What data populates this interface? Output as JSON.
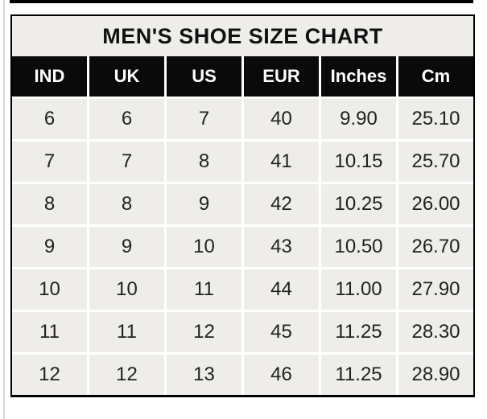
{
  "title": "MEN'S SHOE SIZE CHART",
  "chart_data": {
    "type": "table",
    "title": "MEN'S SHOE SIZE CHART",
    "columns": [
      "IND",
      "UK",
      "US",
      "EUR",
      "Inches",
      "Cm"
    ],
    "rows": [
      [
        "6",
        "6",
        "7",
        "40",
        "9.90",
        "25.10"
      ],
      [
        "7",
        "7",
        "8",
        "41",
        "10.15",
        "25.70"
      ],
      [
        "8",
        "8",
        "9",
        "42",
        "10.25",
        "26.00"
      ],
      [
        "9",
        "9",
        "10",
        "43",
        "10.50",
        "26.70"
      ],
      [
        "10",
        "10",
        "11",
        "44",
        "11.00",
        "27.90"
      ],
      [
        "11",
        "11",
        "12",
        "45",
        "11.25",
        "28.30"
      ],
      [
        "12",
        "12",
        "13",
        "46",
        "11.25",
        "28.90"
      ]
    ],
    "layout": {
      "grid": "white 3px gaps between cells",
      "header_position": "top row"
    }
  },
  "colors": {
    "header_bg": "#0a0a0a",
    "header_text": "#ffffff",
    "cell_bg": "#eeedea",
    "cell_text": "#212121",
    "title_bg": "#eeedea",
    "outer_border": "#000000",
    "grid_line": "#ffffff",
    "top_edge_line": "#000000",
    "left_edge_line": "#d9d8d5"
  }
}
